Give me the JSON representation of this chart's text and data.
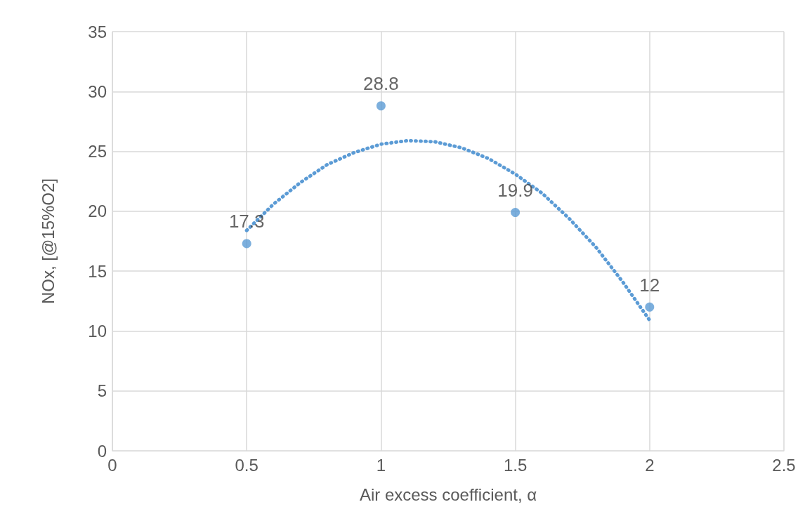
{
  "chart_data": {
    "type": "scatter",
    "xlabel": "Air excess coefficient, α",
    "ylabel": "NOx, [@15%O2]",
    "xlim": [
      0,
      2.5
    ],
    "xticks": [
      0,
      0.5,
      1,
      1.5,
      2,
      2.5
    ],
    "ylim": [
      0,
      35
    ],
    "yticks": [
      0,
      5,
      10,
      15,
      20,
      25,
      30,
      35
    ],
    "grid": true,
    "series": [
      {
        "type": "line",
        "color": "#5b9bd5",
        "line_style": "dotted",
        "marker": "none",
        "x": [
          0.5,
          0.6,
          0.7,
          0.8,
          0.9,
          1.0,
          1.1,
          1.2,
          1.3,
          1.4,
          1.5,
          1.6,
          1.7,
          1.8,
          1.9,
          2.0
        ],
        "values": [
          18.4,
          20.6,
          22.4,
          23.9,
          24.9,
          25.6,
          25.9,
          25.8,
          25.3,
          24.4,
          23.1,
          21.5,
          19.4,
          17.0,
          14.1,
          10.9
        ]
      },
      {
        "type": "scatter",
        "color": "#5b9bd5",
        "marker": "circle",
        "x": [
          0.5,
          1,
          1.5,
          2
        ],
        "values": [
          17.3,
          28.8,
          19.9,
          12
        ],
        "value_labels": [
          "17.3",
          "28.8",
          "19.9",
          "12"
        ]
      }
    ]
  }
}
